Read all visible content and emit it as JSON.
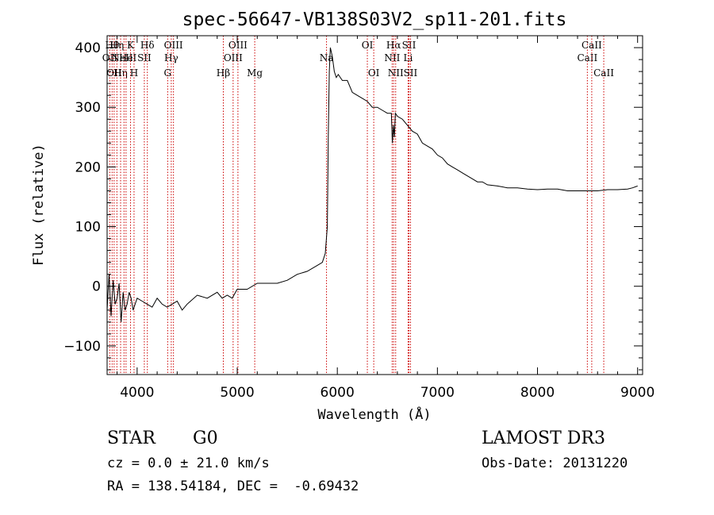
{
  "chart_data": {
    "type": "line",
    "title": "spec-56647-VB138S03V2_sp11-201.fits",
    "xlabel": "Wavelength (Å)",
    "ylabel": "Flux (relative)",
    "xlim": [
      3700,
      9050
    ],
    "ylim": [
      -148,
      420
    ],
    "xticks": [
      4000,
      5000,
      6000,
      7000,
      8000,
      9000
    ],
    "xtick_labels": [
      "4000",
      "5000",
      "6000",
      "7000",
      "8000",
      "9000"
    ],
    "yticks": [
      -100,
      0,
      100,
      200,
      300,
      400
    ],
    "ytick_labels": [
      "−100",
      "0",
      "100",
      "200",
      "300",
      "400"
    ],
    "grid": false,
    "colors": {
      "spectrum": "#000000",
      "line_markers": "#cc0000"
    },
    "series": [
      {
        "x": [
          3700,
          3720,
          3740,
          3760,
          3780,
          3800,
          3820,
          3840,
          3860,
          3880,
          3900,
          3920,
          3940,
          3960,
          3980,
          4000,
          4050,
          4100,
          4150,
          4200,
          4250,
          4300,
          4350,
          4400,
          4450,
          4500,
          4600,
          4700,
          4800,
          4850,
          4900,
          4950,
          5000,
          5100,
          5200,
          5300,
          5400,
          5500,
          5600,
          5700,
          5800,
          5850,
          5880,
          5900,
          5910,
          5920,
          5930,
          5950,
          5970,
          5990,
          6010,
          6050,
          6100,
          6150,
          6200,
          6250,
          6300,
          6350,
          6400,
          6450,
          6500,
          6540,
          6550,
          6560,
          6570,
          6580,
          6600,
          6650,
          6700,
          6750,
          6800,
          6850,
          6900,
          6950,
          7000,
          7050,
          7100,
          7150,
          7200,
          7250,
          7300,
          7350,
          7400,
          7450,
          7500,
          7600,
          7700,
          7800,
          7900,
          8000,
          8100,
          8200,
          8300,
          8400,
          8500,
          8600,
          8700,
          8800,
          8900,
          8950,
          9000
        ],
        "y": [
          -40,
          20,
          -50,
          10,
          -30,
          -20,
          5,
          -60,
          -10,
          -40,
          -30,
          -10,
          -20,
          -40,
          -30,
          -20,
          -25,
          -30,
          -35,
          -20,
          -30,
          -35,
          -30,
          -25,
          -40,
          -30,
          -15,
          -20,
          -10,
          -20,
          -15,
          -20,
          -5,
          -5,
          5,
          5,
          5,
          10,
          20,
          25,
          35,
          40,
          55,
          100,
          250,
          360,
          400,
          385,
          360,
          350,
          355,
          345,
          345,
          325,
          320,
          315,
          310,
          300,
          300,
          295,
          290,
          290,
          240,
          270,
          250,
          290,
          285,
          280,
          270,
          260,
          255,
          240,
          235,
          230,
          220,
          215,
          205,
          200,
          195,
          190,
          185,
          180,
          175,
          175,
          170,
          168,
          165,
          165,
          163,
          162,
          163,
          163,
          160,
          160,
          160,
          160,
          162,
          162,
          163,
          165,
          168
        ]
      }
    ],
    "emission_lines": [
      {
        "wavelength": 3727,
        "label": "OII",
        "row": 2
      },
      {
        "wavelength": 3750,
        "label": "Hθ",
        "row": 1
      },
      {
        "wavelength": 3770,
        "label": "OII",
        "row": 3
      },
      {
        "wavelength": 3798,
        "label": "Hη",
        "row": 1
      },
      {
        "wavelength": 3835,
        "label": "Hη",
        "row": 3
      },
      {
        "wavelength": 3869,
        "label": "NeIII",
        "row": 2
      },
      {
        "wavelength": 3889,
        "label": "He",
        "row": 2
      },
      {
        "wavelength": 3934,
        "label": "K",
        "row": 1
      },
      {
        "wavelength": 3969,
        "label": "H",
        "row": 3
      },
      {
        "wavelength": 4072,
        "label": "SII",
        "row": 2
      },
      {
        "wavelength": 4102,
        "label": "Hδ",
        "row": 1
      },
      {
        "wavelength": 4305,
        "label": "G",
        "row": 3
      },
      {
        "wavelength": 4341,
        "label": "Hγ",
        "row": 2
      },
      {
        "wavelength": 4363,
        "label": "OIII",
        "row": 1
      },
      {
        "wavelength": 4861,
        "label": "Hβ",
        "row": 3
      },
      {
        "wavelength": 4959,
        "label": "OIII",
        "row": 2
      },
      {
        "wavelength": 5007,
        "label": "OIII",
        "row": 1
      },
      {
        "wavelength": 5175,
        "label": "Mg",
        "row": 3
      },
      {
        "wavelength": 5892,
        "label": "Na",
        "row": 2
      },
      {
        "wavelength": 6300,
        "label": "OI",
        "row": 1
      },
      {
        "wavelength": 6364,
        "label": "OI",
        "row": 3
      },
      {
        "wavelength": 6548,
        "label": "NII",
        "row": 2
      },
      {
        "wavelength": 6563,
        "label": "Hα",
        "row": 1
      },
      {
        "wavelength": 6583,
        "label": "NII",
        "row": 3
      },
      {
        "wavelength": 6707,
        "label": "Li",
        "row": 2
      },
      {
        "wavelength": 6716,
        "label": "SII",
        "row": 1
      },
      {
        "wavelength": 6731,
        "label": "SII",
        "row": 3
      },
      {
        "wavelength": 8498,
        "label": "CaII",
        "row": 2
      },
      {
        "wavelength": 8542,
        "label": "CaII",
        "row": 1
      },
      {
        "wavelength": 8662,
        "label": "CaII",
        "row": 3
      }
    ]
  },
  "info": {
    "object_class": "STAR",
    "subclass": "G0",
    "survey": "LAMOST DR3",
    "redshift": "cz = 0.0 ± 21.0 km/s",
    "obs_date": "Obs-Date: 20131220",
    "coords": "RA = 138.54184, DEC =  -0.69432"
  }
}
